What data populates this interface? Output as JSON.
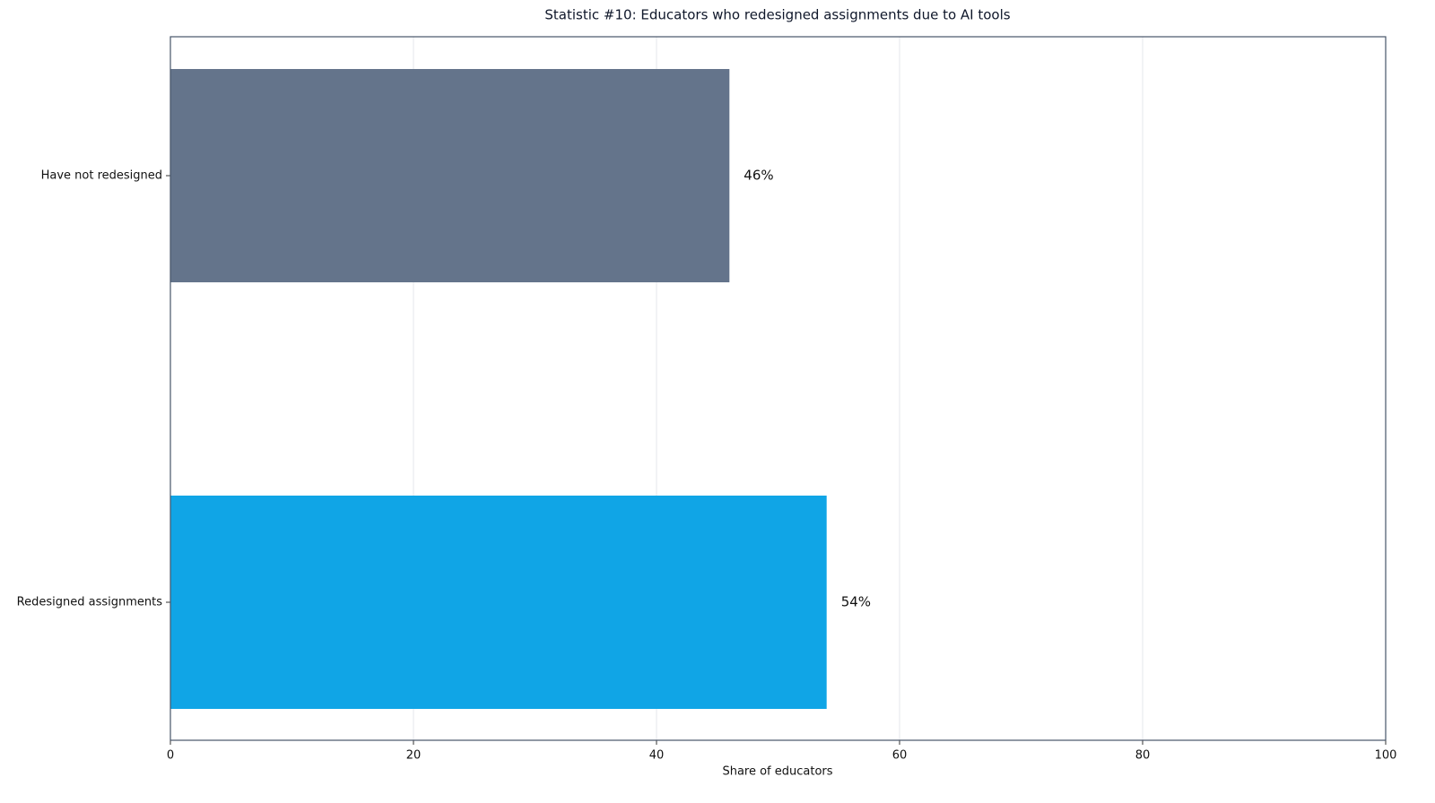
{
  "chart_data": {
    "type": "barh",
    "title": "Statistic #10: Educators who redesigned assignments due to AI tools",
    "categories": [
      "Redesigned assignments",
      "Have not redesigned"
    ],
    "values": [
      54,
      46
    ],
    "value_labels": [
      "54%",
      "46%"
    ],
    "colors": [
      "#10a5e6",
      "#64748b"
    ],
    "x_label": "Share of educators",
    "xlim": [
      0,
      100
    ],
    "xticks": [
      0,
      20,
      40,
      60,
      80,
      100
    ],
    "grid": true
  }
}
